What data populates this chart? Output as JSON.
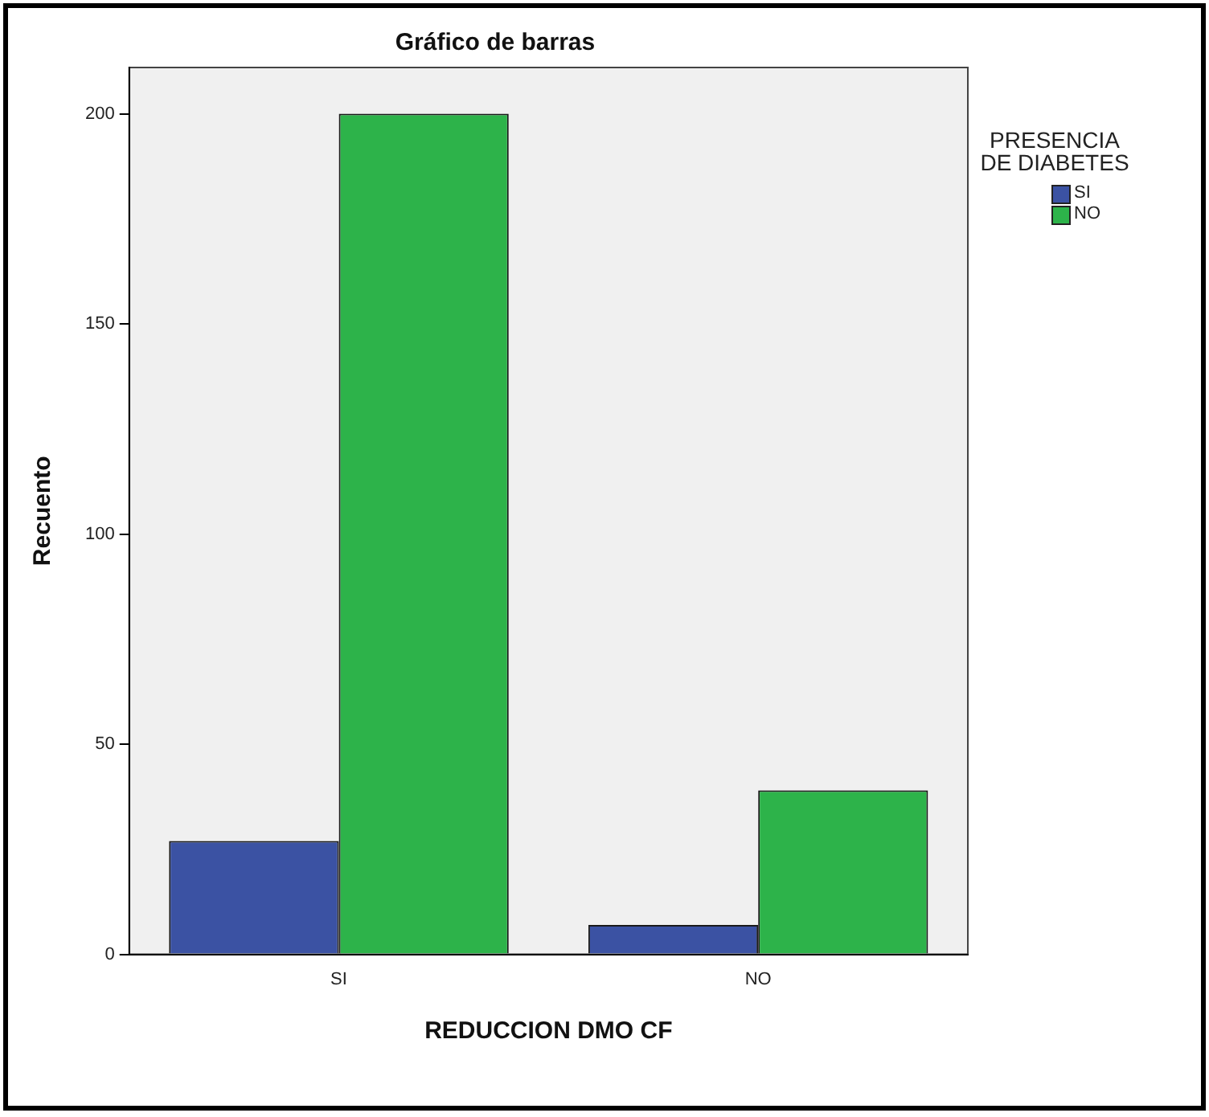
{
  "chart_data": {
    "type": "bar",
    "title": "Gráfico de barras",
    "xlabel": "REDUCCION DMO CF",
    "ylabel": "Recuento",
    "legend_title": "PRESENCIA DE DIABETES",
    "categories": [
      "SI",
      "NO"
    ],
    "series": [
      {
        "name": "SI",
        "color": "#3b52a3",
        "values": [
          27,
          7
        ]
      },
      {
        "name": "NO",
        "color": "#2db34a",
        "values": [
          200,
          39
        ]
      }
    ],
    "ylim": [
      0,
      211
    ],
    "yticks": [
      0,
      50,
      100,
      150,
      200
    ],
    "grid": false,
    "legend": "right"
  }
}
